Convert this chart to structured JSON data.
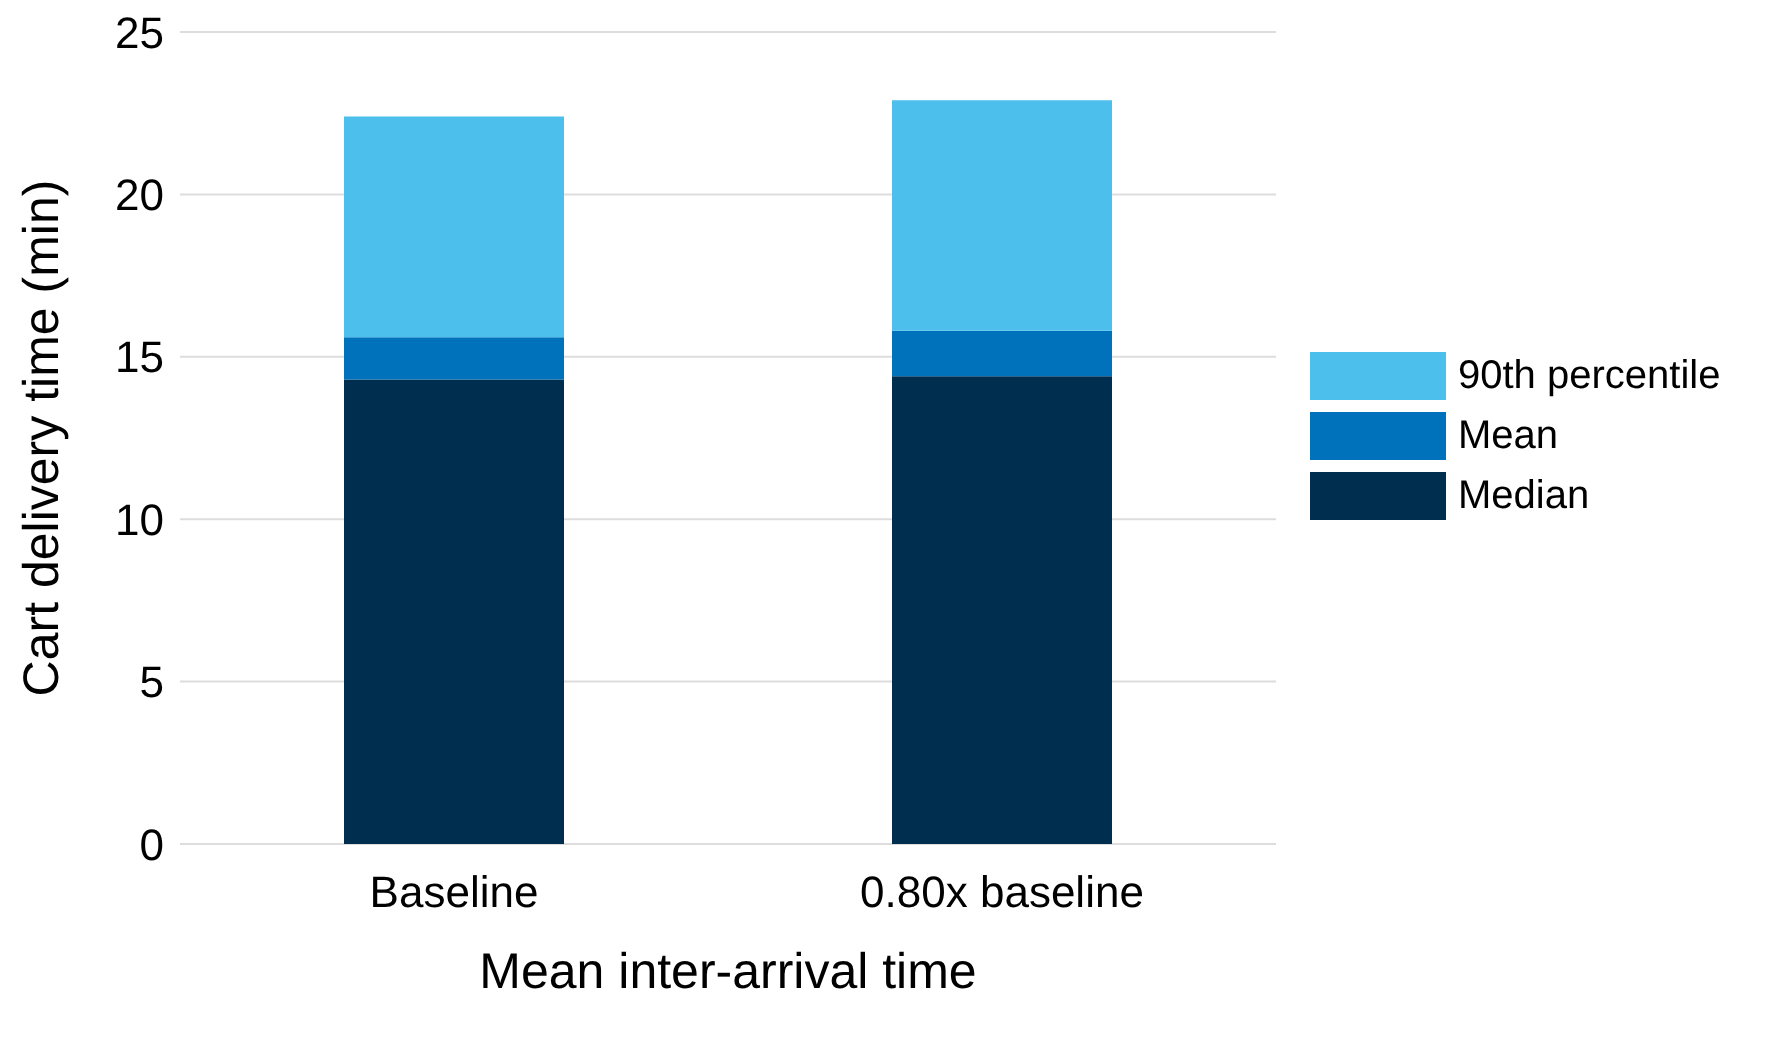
{
  "chart_data": {
    "type": "bar",
    "stacked": true,
    "xlabel": "Mean inter-arrival time",
    "ylabel": "Cart delivery time (min)",
    "categories": [
      "Baseline",
      "0.80x baseline"
    ],
    "series": [
      {
        "name": "Median",
        "color": "#002e4f",
        "values": [
          14.3,
          14.4
        ]
      },
      {
        "name": "Mean",
        "color": "#0072bc",
        "values": [
          1.3,
          1.4
        ]
      },
      {
        "name": "90th percentile",
        "color": "#4dbfec",
        "values": [
          6.8,
          7.1
        ]
      }
    ],
    "ylim": [
      0,
      25
    ],
    "yticks": [
      0,
      5,
      10,
      15,
      20,
      25
    ],
    "grid": "y",
    "legend": "right"
  }
}
